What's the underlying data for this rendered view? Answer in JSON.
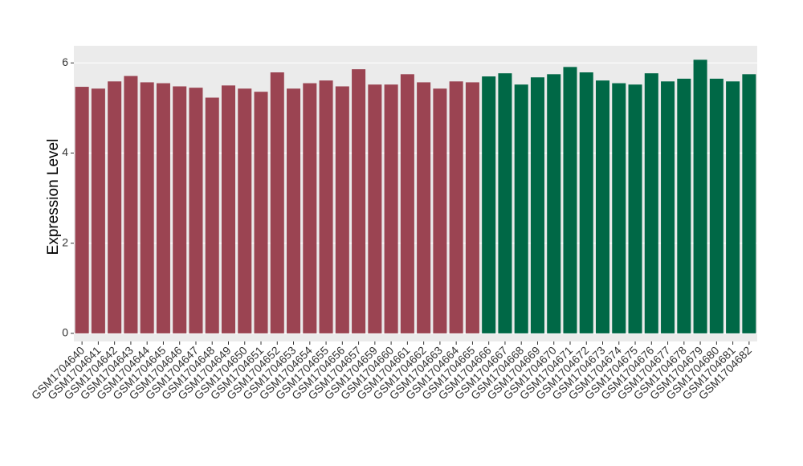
{
  "chart_data": {
    "type": "bar",
    "y_label": "Expression Level",
    "categories": [
      "GSM1704640",
      "GSM1704641",
      "GSM1704642",
      "GSM1704643",
      "GSM1704644",
      "GSM1704645",
      "GSM1704646",
      "GSM1704647",
      "GSM1704648",
      "GSM1704649",
      "GSM1704650",
      "GSM1704651",
      "GSM1704652",
      "GSM1704653",
      "GSM1704654",
      "GSM1704655",
      "GSM1704656",
      "GSM1704657",
      "GSM1704659",
      "GSM1704660",
      "GSM1704661",
      "GSM1704662",
      "GSM1704663",
      "GSM1704664",
      "GSM1704665",
      "GSM1704666",
      "GSM1704667",
      "GSM1704668",
      "GSM1704669",
      "GSM1704670",
      "GSM1704671",
      "GSM1704672",
      "GSM1704673",
      "GSM1704674",
      "GSM1704675",
      "GSM1704676",
      "GSM1704677",
      "GSM1704678",
      "GSM1704679",
      "GSM1704680",
      "GSM1704681",
      "GSM1704682"
    ],
    "values": [
      5.47,
      5.43,
      5.59,
      5.71,
      5.57,
      5.55,
      5.48,
      5.45,
      5.23,
      5.5,
      5.43,
      5.36,
      5.79,
      5.43,
      5.55,
      5.61,
      5.48,
      5.86,
      5.52,
      5.52,
      5.75,
      5.57,
      5.43,
      5.59,
      5.57,
      5.7,
      5.77,
      5.52,
      5.68,
      5.75,
      5.91,
      5.79,
      5.61,
      5.55,
      5.52,
      5.77,
      5.59,
      5.65,
      6.07,
      5.65,
      5.59,
      5.75
    ],
    "colors": [
      "#9b4452",
      "#9b4452",
      "#9b4452",
      "#9b4452",
      "#9b4452",
      "#9b4452",
      "#9b4452",
      "#9b4452",
      "#9b4452",
      "#9b4452",
      "#9b4452",
      "#9b4452",
      "#9b4452",
      "#9b4452",
      "#9b4452",
      "#9b4452",
      "#9b4452",
      "#9b4452",
      "#9b4452",
      "#9b4452",
      "#9b4452",
      "#9b4452",
      "#9b4452",
      "#9b4452",
      "#9b4452",
      "#006846",
      "#006846",
      "#006846",
      "#006846",
      "#006846",
      "#006846",
      "#006846",
      "#006846",
      "#006846",
      "#006846",
      "#006846",
      "#006846",
      "#006846",
      "#006846",
      "#006846",
      "#006846",
      "#006846"
    ],
    "ylim": [
      -0.18,
      6.38
    ],
    "yticks": [
      0,
      2,
      4,
      6
    ],
    "grid": true
  }
}
